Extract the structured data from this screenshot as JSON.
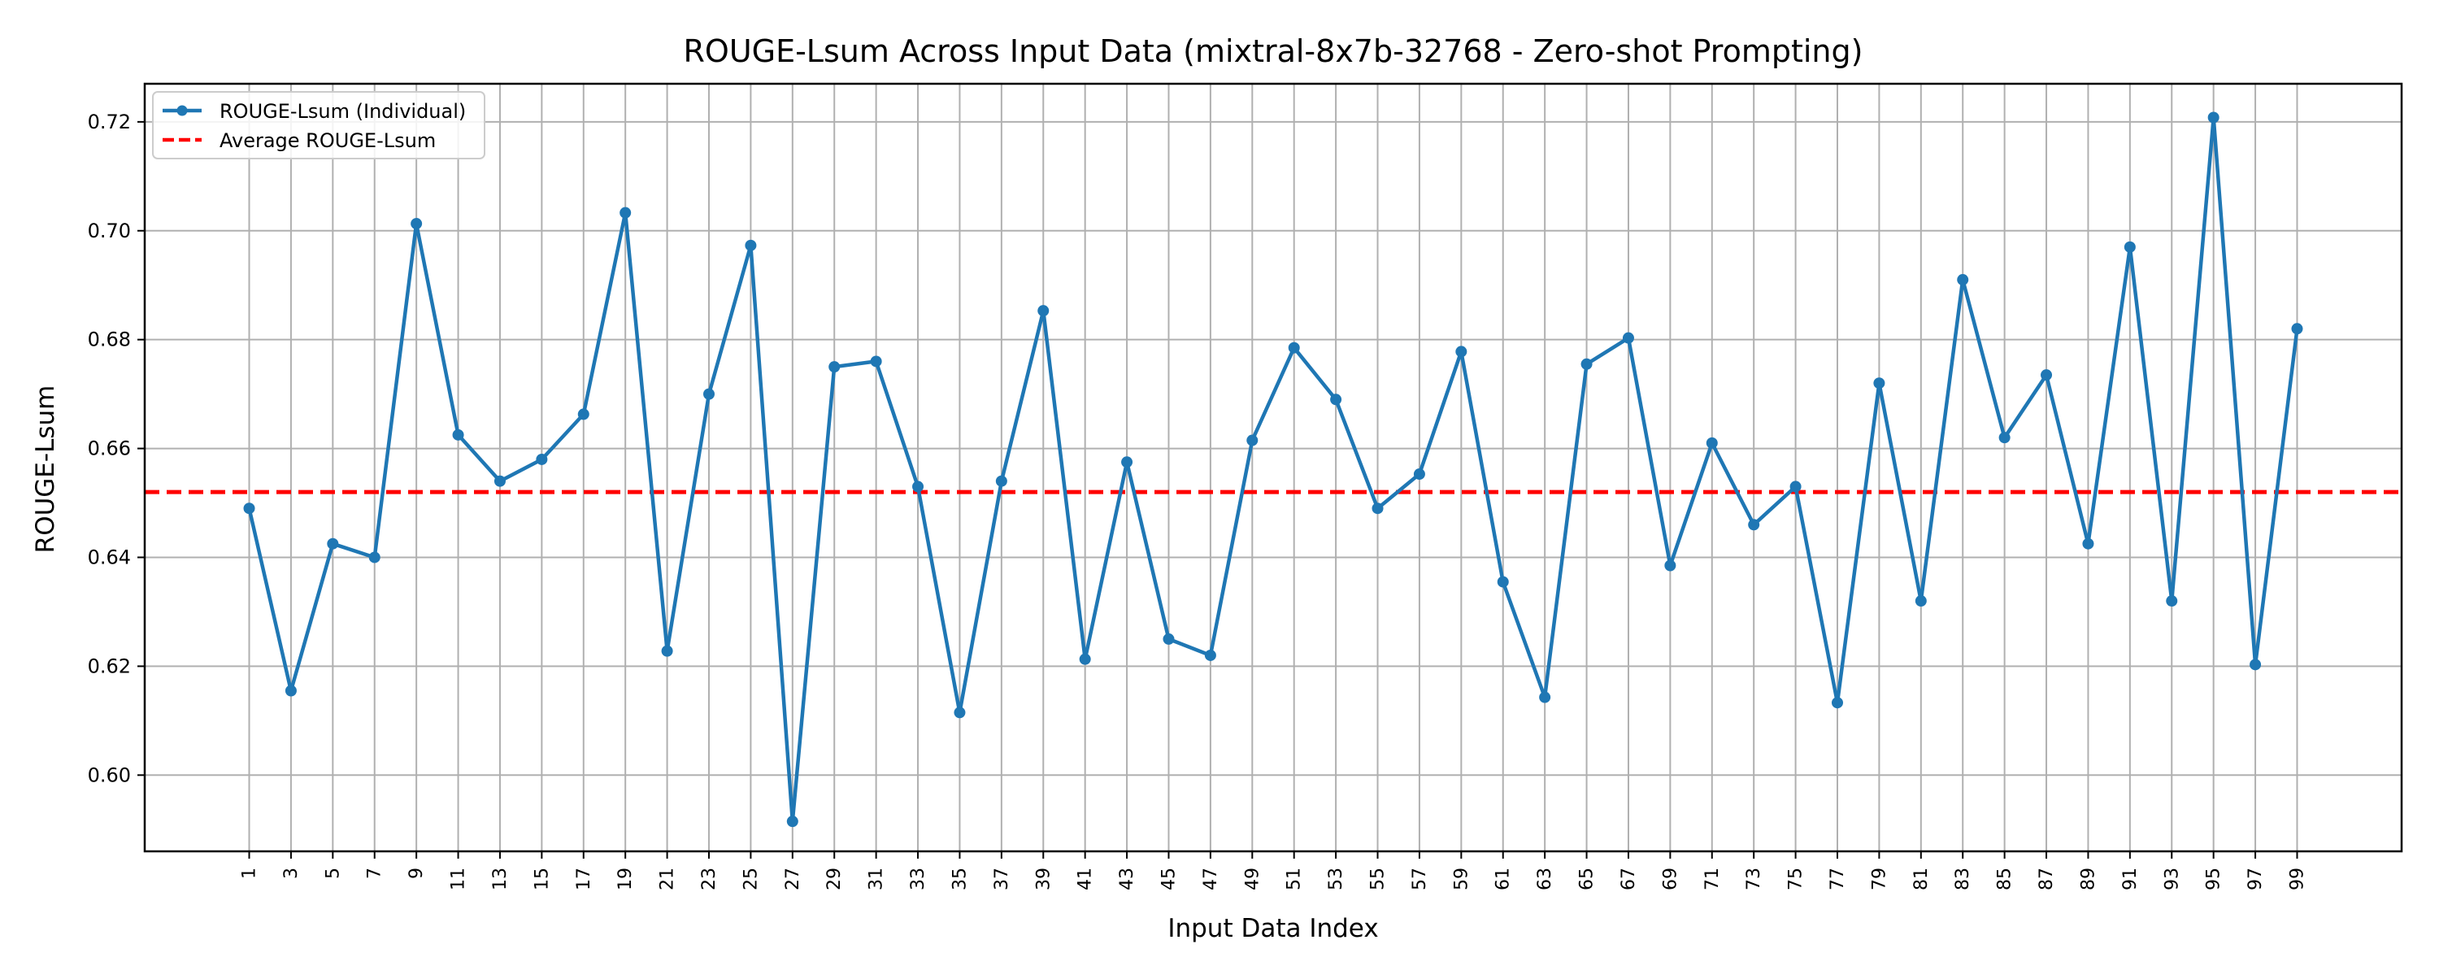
{
  "chart_data": {
    "type": "line",
    "title": "ROUGE-Lsum Across Input Data (mixtral-8x7b-32768 - Zero-shot Prompting)",
    "xlabel": "Input Data Index",
    "ylabel": "ROUGE-Lsum",
    "xlim": [
      -4,
      104
    ],
    "ylim": [
      0.586,
      0.727
    ],
    "x": [
      1,
      3,
      5,
      7,
      9,
      11,
      13,
      15,
      17,
      19,
      21,
      23,
      25,
      27,
      29,
      31,
      33,
      35,
      37,
      39,
      41,
      43,
      45,
      47,
      49,
      51,
      53,
      55,
      57,
      59,
      61,
      63,
      65,
      67,
      69,
      71,
      73,
      75,
      77,
      79,
      81,
      83,
      85,
      87,
      89,
      91,
      93,
      95,
      97,
      99
    ],
    "x_ticks": [
      "1",
      "3",
      "5",
      "7",
      "9",
      "11",
      "13",
      "15",
      "17",
      "19",
      "21",
      "23",
      "25",
      "27",
      "29",
      "31",
      "33",
      "35",
      "37",
      "39",
      "41",
      "43",
      "45",
      "47",
      "49",
      "51",
      "53",
      "55",
      "57",
      "59",
      "61",
      "63",
      "65",
      "67",
      "69",
      "71",
      "73",
      "75",
      "77",
      "79",
      "81",
      "83",
      "85",
      "87",
      "89",
      "91",
      "93",
      "95",
      "97",
      "99"
    ],
    "y_ticks": [
      "0.60",
      "0.62",
      "0.64",
      "0.66",
      "0.68",
      "0.70",
      "0.72"
    ],
    "y_tick_values": [
      0.6,
      0.62,
      0.64,
      0.66,
      0.68,
      0.7,
      0.72
    ],
    "series": [
      {
        "name": "ROUGE-Lsum (Individual)",
        "color": "#1f77b4",
        "style": "solid-with-markers",
        "values": [
          0.649,
          0.6155,
          0.6425,
          0.64,
          0.7013,
          0.6625,
          0.654,
          0.658,
          0.6663,
          0.7033,
          0.6228,
          0.67,
          0.6973,
          0.5915,
          0.675,
          0.676,
          0.653,
          0.6115,
          0.654,
          0.6853,
          0.6213,
          0.6575,
          0.625,
          0.622,
          0.6615,
          0.6785,
          0.669,
          0.649,
          0.6553,
          0.6778,
          0.6355,
          0.6143,
          0.6755,
          0.6803,
          0.6385,
          0.661,
          0.646,
          0.653,
          0.6133,
          0.672,
          0.632,
          0.691,
          0.662,
          0.6735,
          0.6425,
          0.697,
          0.632,
          0.7208,
          0.6203,
          0.682
        ]
      },
      {
        "name": "Average ROUGE-Lsum",
        "color": "#ff0000",
        "style": "dashed",
        "value": 0.652
      }
    ],
    "grid": true,
    "legend_position": "top-left"
  }
}
